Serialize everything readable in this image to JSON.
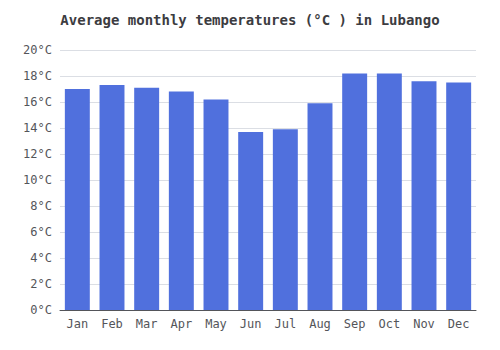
{
  "chart_data": {
    "type": "bar",
    "title": "Average monthly temperatures (°C ) in Lubango",
    "categories": [
      "Jan",
      "Feb",
      "Mar",
      "Apr",
      "May",
      "Jun",
      "Jul",
      "Aug",
      "Sep",
      "Oct",
      "Nov",
      "Dec"
    ],
    "values": [
      17.0,
      17.3,
      17.1,
      16.8,
      16.2,
      13.7,
      13.9,
      15.9,
      18.2,
      18.2,
      17.6,
      17.5
    ],
    "ylim": [
      0,
      20
    ],
    "yticks": [
      {
        "value": 0,
        "label": "0°C"
      },
      {
        "value": 2,
        "label": "2°C"
      },
      {
        "value": 4,
        "label": "4°C"
      },
      {
        "value": 6,
        "label": "6°C"
      },
      {
        "value": 8,
        "label": "8°C"
      },
      {
        "value": 10,
        "label": "10°C"
      },
      {
        "value": 12,
        "label": "12°C"
      },
      {
        "value": 14,
        "label": "14°C"
      },
      {
        "value": 16,
        "label": "16°C"
      },
      {
        "value": 18,
        "label": "18°C"
      },
      {
        "value": 20,
        "label": "20°C"
      }
    ],
    "grid": true
  }
}
